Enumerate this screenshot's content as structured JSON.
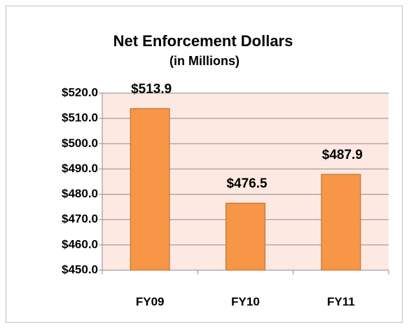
{
  "chart_data": {
    "type": "bar",
    "title": "Net Enforcement Dollars",
    "subtitle": "(in Millions)",
    "categories": [
      "FY09",
      "FY10",
      "FY11"
    ],
    "values": [
      513.9,
      476.5,
      487.9
    ],
    "value_labels": [
      "$513.9",
      "$476.5",
      "$487.9"
    ],
    "color": "#f79646",
    "ylim": [
      450,
      520
    ],
    "yticks": [
      {
        "value": 450,
        "label": "$450.0"
      },
      {
        "value": 460,
        "label": "$460.0"
      },
      {
        "value": 470,
        "label": "$470.0"
      },
      {
        "value": 480,
        "label": "$480.0"
      },
      {
        "value": 490,
        "label": "$490.0"
      },
      {
        "value": 500,
        "label": "$500.0"
      },
      {
        "value": 510,
        "label": "$510.0"
      },
      {
        "value": 520,
        "label": "$520.0"
      }
    ],
    "grid": true
  }
}
